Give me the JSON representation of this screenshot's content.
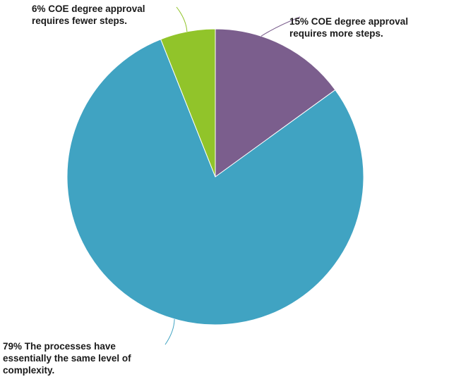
{
  "chart_data": {
    "type": "pie",
    "title": "",
    "slices": [
      {
        "label_lines": [
          "15% COE degree approval",
          "requires more steps."
        ],
        "value": 15,
        "color": "#7b5e8d"
      },
      {
        "label_lines": [
          "79% The processes have",
          "essentially the same level of",
          "complexity."
        ],
        "value": 79,
        "color": "#40a3c2"
      },
      {
        "label_lines": [
          "6% COE degree approval",
          "requires fewer steps."
        ],
        "value": 6,
        "color": "#91c42a"
      }
    ],
    "start_angle_deg": 0,
    "direction": "clockwise",
    "legend": "none",
    "labels": "outside with leader lines"
  }
}
